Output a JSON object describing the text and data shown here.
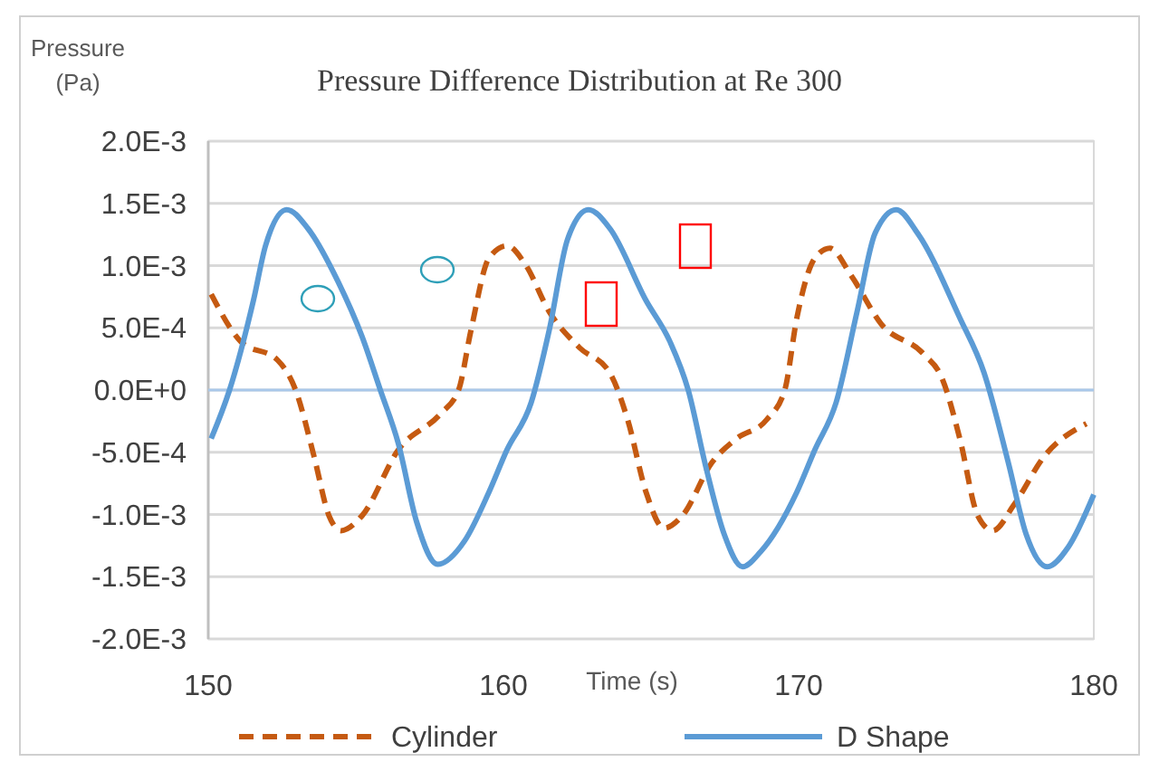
{
  "chart_data": {
    "type": "line",
    "title": "Pressure Difference  Distribution  at Re 300",
    "xlabel": "Time (s)",
    "ylabel": "Pressure (Pa)",
    "xlim": [
      150,
      180
    ],
    "xticks": [
      150,
      160,
      170,
      180
    ],
    "ylim": [
      -0.002,
      0.002
    ],
    "yticks": [
      {
        "value": -0.002,
        "label": "-2.0E-3"
      },
      {
        "value": -0.0015,
        "label": "-1.5E-3"
      },
      {
        "value": -0.001,
        "label": "-1.0E-3"
      },
      {
        "value": -0.0005,
        "label": "-5.0E-4"
      },
      {
        "value": 0,
        "label": "0.0E+0"
      },
      {
        "value": 0.0005,
        "label": "5.0E-4"
      },
      {
        "value": 0.001,
        "label": "1.0E-3"
      },
      {
        "value": 0.0015,
        "label": "1.5E-3"
      },
      {
        "value": 0.002,
        "label": "2.0E-3"
      }
    ],
    "grid": "y",
    "legend": "bottom",
    "marker": "none",
    "ref_lines": [
      {
        "axis": "y",
        "value": 0,
        "color": "#a9c8ea"
      }
    ],
    "series": [
      {
        "name": "Cylinder",
        "color": "#c55a11",
        "line_style": "dashed",
        "x": [
          150.1,
          151.1,
          152.35,
          152.96,
          153.58,
          154.09,
          154.5,
          155.21,
          156.44,
          157.87,
          158.48,
          158.9,
          159.51,
          160.12,
          160.74,
          161.55,
          162.58,
          163.6,
          164.21,
          164.83,
          165.44,
          166.06,
          167.07,
          167.9,
          168.91,
          169.53,
          169.94,
          170.55,
          171.06,
          171.78,
          172.8,
          174.23,
          174.85,
          175.46,
          176.07,
          176.58,
          177.3,
          178.33,
          179.75
        ],
        "values": [
          0.00077,
          0.00039,
          0.00024,
          0.0,
          -0.00053,
          -0.00101,
          -0.00113,
          -0.00101,
          -0.00048,
          -0.00019,
          0.0,
          0.00048,
          0.00106,
          0.00116,
          0.00101,
          0.00063,
          0.00034,
          0.00014,
          -0.00024,
          -0.00082,
          -0.00111,
          -0.00101,
          -0.00058,
          -0.00039,
          -0.00024,
          0.0,
          0.00058,
          0.00106,
          0.00114,
          0.00092,
          0.00053,
          0.00029,
          0.0001,
          -0.00039,
          -0.00101,
          -0.00113,
          -0.00092,
          -0.00053,
          -0.00027
        ]
      },
      {
        "name": "D Shape",
        "color": "#5b9bd5",
        "line_style": "solid",
        "x": [
          150.1,
          150.72,
          151.53,
          151.94,
          152.66,
          153.37,
          154.4,
          155.21,
          155.83,
          156.44,
          157.06,
          157.77,
          158.69,
          159.51,
          160.12,
          160.94,
          161.55,
          162.17,
          162.88,
          163.6,
          164.83,
          165.64,
          166.26,
          166.87,
          167.48,
          168.1,
          168.71,
          169.94,
          170.55,
          171.27,
          171.98,
          172.59,
          173.31,
          174.03,
          175.46,
          176.28,
          177.1,
          177.71,
          178.42,
          179.14,
          180
        ],
        "values": [
          -0.00039,
          0.0,
          0.00072,
          0.00116,
          0.00145,
          0.0013,
          0.00087,
          0.00043,
          0.0,
          -0.00043,
          -0.00106,
          -0.0014,
          -0.00121,
          -0.00082,
          -0.00048,
          -0.0001,
          0.00048,
          0.00121,
          0.00145,
          0.0013,
          0.00072,
          0.00039,
          0.0,
          -0.00063,
          -0.00116,
          -0.00142,
          -0.0013,
          -0.00082,
          -0.00048,
          -0.0001,
          0.00063,
          0.00126,
          0.00145,
          0.00126,
          0.00058,
          0.00014,
          -0.00058,
          -0.00116,
          -0.00142,
          -0.00126,
          -0.00084
        ]
      }
    ]
  }
}
